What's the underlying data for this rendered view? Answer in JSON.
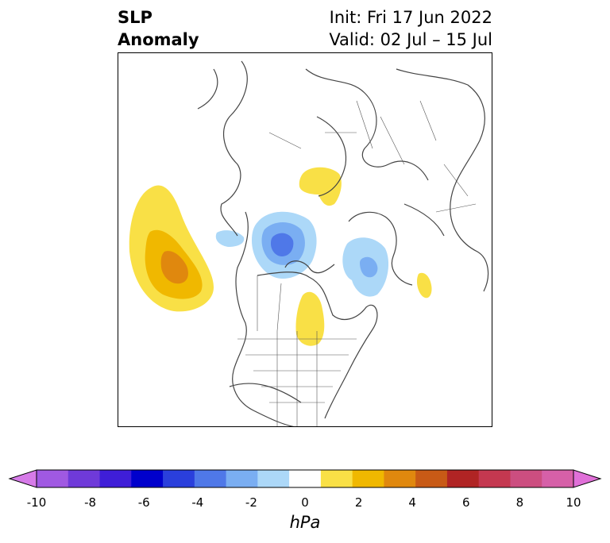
{
  "title": {
    "left_line1": "SLP",
    "left_line2": "Anomaly",
    "right_line1": "Init: Fri 17 Jun 2022",
    "right_line2": "Valid: 02 Jul – 15 Jul"
  },
  "colorbar": {
    "label": "hPa",
    "ticks": [
      "-10",
      "-8",
      "-6",
      "-4",
      "-2",
      "0",
      "2",
      "4",
      "6",
      "8",
      "10"
    ],
    "colors": [
      "#d67be8",
      "#a059e2",
      "#6f3ad9",
      "#3f1ed8",
      "#0000cc",
      "#2a3fdc",
      "#4f78e8",
      "#7aaef2",
      "#acd8f8",
      "#ffffff",
      "#f9e046",
      "#f0b800",
      "#e0880e",
      "#c85a16",
      "#b02424",
      "#c43850",
      "#cc4e80",
      "#d660a8",
      "#e070d8"
    ],
    "extend": "both"
  },
  "map": {
    "projection": "polar stereographic",
    "region": "North America / Arctic",
    "colors": {
      "land_outline": "#444444",
      "positive_1": "#f9e046",
      "positive_2": "#f0b800",
      "positive_3": "#e0880e",
      "negative_1": "#acd8f8",
      "negative_2": "#7aaef2",
      "negative_3": "#4f78e8"
    }
  }
}
